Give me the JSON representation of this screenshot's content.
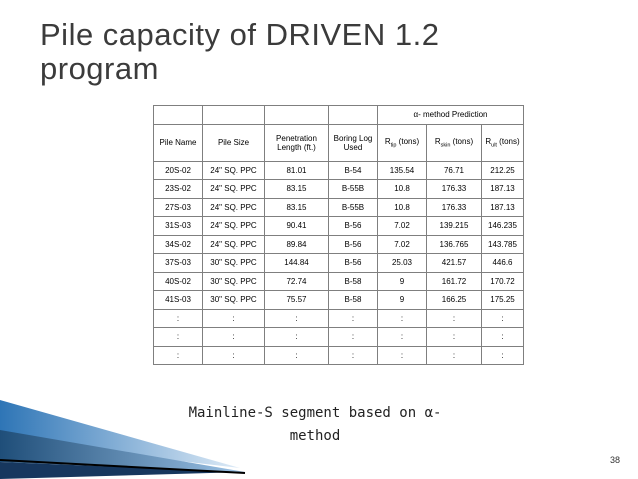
{
  "header": {
    "title_lines": [
      "Pile capacity of DRIVEN 1.2",
      "program"
    ]
  },
  "table": {
    "group_header": "α- method Prediction",
    "columns": [
      "Pile Name",
      "Pile Size",
      "Penetration Length (ft.)",
      "Boring Log Used",
      {
        "base": "R",
        "sub": "tip",
        "unit": " (tons)"
      },
      {
        "base": "R",
        "sub": "skin",
        "unit": " (tons)"
      },
      {
        "base": "R",
        "sub": "ult",
        "unit": " (tons)"
      }
    ],
    "rows": [
      [
        "20S-02",
        "24\" SQ. PPC",
        "81.01",
        "B-54",
        "135.54",
        "76.71",
        "212.25"
      ],
      [
        "23S-02",
        "24\" SQ. PPC",
        "83.15",
        "B-55B",
        "10.8",
        "176.33",
        "187.13"
      ],
      [
        "27S-03",
        "24\" SQ. PPC",
        "83.15",
        "B-55B",
        "10.8",
        "176.33",
        "187.13"
      ],
      [
        "31S-03",
        "24\" SQ. PPC",
        "90.41",
        "B-56",
        "7.02",
        "139.215",
        "146.235"
      ],
      [
        "34S-02",
        "24\" SQ. PPC",
        "89.84",
        "B-56",
        "7.02",
        "136.765",
        "143.785"
      ],
      [
        "37S-03",
        "30\" SQ. PPC",
        "144.84",
        "B-56",
        "25.03",
        "421.57",
        "446.6"
      ],
      [
        "40S-02",
        "30\" SQ. PPC",
        "72.74",
        "B-58",
        "9",
        "161.72",
        "170.72"
      ],
      [
        "41S-03",
        "30\" SQ. PPC",
        "75.57",
        "B-58",
        "9",
        "166.25",
        "175.25"
      ],
      [
        ":",
        ":",
        ":",
        ":",
        ":",
        ":",
        ":"
      ],
      [
        ":",
        ":",
        ":",
        ":",
        ":",
        ":",
        ":"
      ],
      [
        ":",
        ":",
        ":",
        ":",
        ":",
        ":",
        ":"
      ]
    ]
  },
  "caption_lines": [
    "Mainline-S segment based on α-",
    "method"
  ],
  "page_number": "38"
}
